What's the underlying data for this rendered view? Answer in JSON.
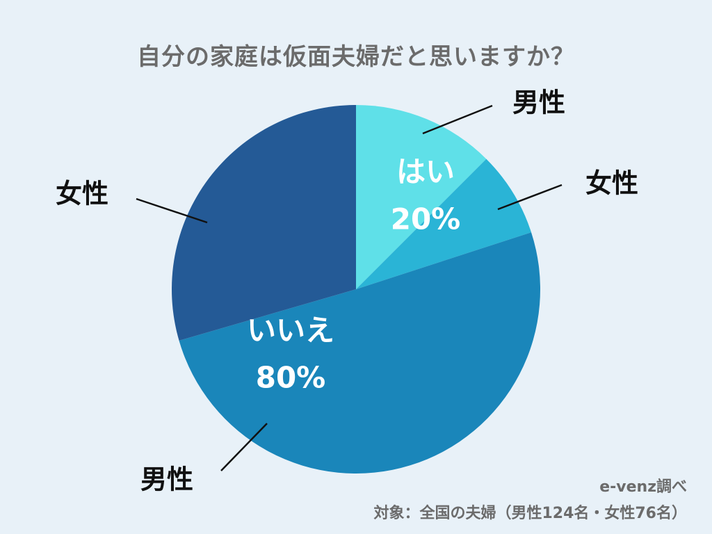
{
  "title": "自分の家庭は仮面夫婦だと思いますか？",
  "chart_data": {
    "type": "pie",
    "groups": [
      {
        "label": "はい",
        "percent_label": "20%",
        "value": 20
      },
      {
        "label": "いいえ",
        "percent_label": "80%",
        "value": 80
      }
    ],
    "slices": [
      {
        "group": "はい",
        "sub_label": "男性",
        "value": 12.5,
        "color": "#5fe0e8"
      },
      {
        "group": "はい",
        "sub_label": "女性",
        "value": 7.5,
        "color": "#2ab4d6"
      },
      {
        "group": "いいえ",
        "sub_label": "男性",
        "value": 50.5,
        "color": "#1a86ba"
      },
      {
        "group": "いいえ",
        "sub_label": "女性",
        "value": 29.5,
        "color": "#245a96"
      }
    ]
  },
  "footer": {
    "source": "e-venz調べ",
    "note": "対象：全国の夫婦（男性124名・女性76名）"
  }
}
